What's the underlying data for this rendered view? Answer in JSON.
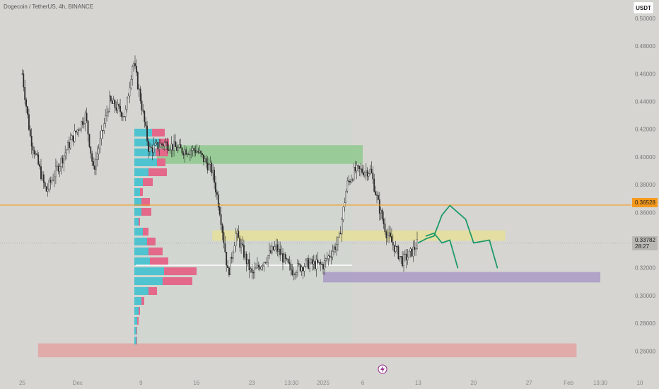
{
  "header": {
    "symbol_line": "Dogecoin / TetherUS, 4h, BINANCE",
    "currency_button": "USDT"
  },
  "price_labels": {
    "level_line": "0.36528",
    "last_price": "0.33782",
    "countdown": "28:27"
  },
  "colors": {
    "background": "#d6d5d1",
    "candle": "#2a2a2a",
    "level_line": "#f59a1c",
    "green_zone": "#8fc98f",
    "yellow_zone": "#e6df9a",
    "purple_zone": "#a99ac6",
    "red_zone": "#e3a3a3",
    "projection": "#1e9a6a",
    "volume_profile_up": "#4fc3cf",
    "volume_profile_down": "#e3688a"
  },
  "chart_data": {
    "type": "candlestick",
    "title": "Dogecoin / TetherUS, 4h, BINANCE",
    "price_unit": "USDT",
    "x_tick_labels": [
      "25",
      "Dec",
      "9",
      "16",
      "23",
      "13:30",
      "2025",
      "6",
      "13",
      "20",
      "27",
      "Feb",
      "13:30",
      "10"
    ],
    "y_tick_labels": [
      "0.50000",
      "0.48000",
      "0.46000",
      "0.44000",
      "0.42000",
      "0.40000",
      "0.38000",
      "0.36000",
      "0.32000",
      "0.30000",
      "0.28000",
      "0.26000"
    ],
    "ylim": [
      0.252,
      0.503
    ],
    "horizontal_level": 0.36528,
    "last_price": 0.33782,
    "price_path": [
      {
        "date": "2024-11-24",
        "price": 0.46
      },
      {
        "date": "2024-11-25",
        "price": 0.415
      },
      {
        "date": "2024-11-27",
        "price": 0.375
      },
      {
        "date": "2024-11-30",
        "price": 0.41
      },
      {
        "date": "2024-12-02",
        "price": 0.43
      },
      {
        "date": "2024-12-03",
        "price": 0.39
      },
      {
        "date": "2024-12-05",
        "price": 0.44
      },
      {
        "date": "2024-12-07",
        "price": 0.43
      },
      {
        "date": "2024-12-08",
        "price": 0.47
      },
      {
        "date": "2024-12-09",
        "price": 0.44
      },
      {
        "date": "2024-12-10",
        "price": 0.405
      },
      {
        "date": "2024-12-12",
        "price": 0.41
      },
      {
        "date": "2024-12-14",
        "price": 0.405
      },
      {
        "date": "2024-12-16",
        "price": 0.405
      },
      {
        "date": "2024-12-18",
        "price": 0.39
      },
      {
        "date": "2024-12-19",
        "price": 0.36
      },
      {
        "date": "2024-12-20",
        "price": 0.315
      },
      {
        "date": "2024-12-21",
        "price": 0.345
      },
      {
        "date": "2024-12-23",
        "price": 0.315
      },
      {
        "date": "2024-12-26",
        "price": 0.335
      },
      {
        "date": "2024-12-28",
        "price": 0.318
      },
      {
        "date": "2024-12-30",
        "price": 0.323
      },
      {
        "date": "2025-01-01",
        "price": 0.322
      },
      {
        "date": "2025-01-03",
        "price": 0.34
      },
      {
        "date": "2025-01-04",
        "price": 0.38
      },
      {
        "date": "2025-01-05",
        "price": 0.39
      },
      {
        "date": "2025-01-07",
        "price": 0.39
      },
      {
        "date": "2025-01-08",
        "price": 0.365
      },
      {
        "date": "2025-01-09",
        "price": 0.345
      },
      {
        "date": "2025-01-10",
        "price": 0.335
      },
      {
        "date": "2025-01-11",
        "price": 0.325
      },
      {
        "date": "2025-01-12",
        "price": 0.33
      },
      {
        "date": "2025-01-13",
        "price": 0.338
      }
    ],
    "zones": [
      {
        "name": "green",
        "date_from": "2024-12-11",
        "date_to": "2025-01-06",
        "price_low": 0.395,
        "price_high": 0.4085
      },
      {
        "name": "yellow",
        "date_from": "2024-12-18",
        "date_to": "2025-01-24",
        "price_low": 0.3395,
        "price_high": 0.347
      },
      {
        "name": "purple",
        "date_from": "2025-01-01",
        "date_to": "2025-02-05",
        "price_low": 0.3095,
        "price_high": 0.317
      },
      {
        "name": "red",
        "date_from": "2024-11-26",
        "date_to": "2025-02-02",
        "price_low": 0.2555,
        "price_high": 0.2655
      }
    ],
    "projections": [
      [
        {
          "date": "2025-01-13",
          "price": 0.338
        },
        {
          "date": "2025-01-14",
          "price": 0.341
        },
        {
          "date": "2025-01-15",
          "price": 0.343
        },
        {
          "date": "2025-01-16",
          "price": 0.358
        },
        {
          "date": "2025-01-17",
          "price": 0.365
        },
        {
          "date": "2025-01-19",
          "price": 0.355
        },
        {
          "date": "2025-01-20",
          "price": 0.338
        },
        {
          "date": "2025-01-22",
          "price": 0.34
        },
        {
          "date": "2025-01-23",
          "price": 0.32
        }
      ],
      [
        {
          "date": "2025-01-14",
          "price": 0.343
        },
        {
          "date": "2025-01-15",
          "price": 0.345
        },
        {
          "date": "2025-01-16",
          "price": 0.338
        },
        {
          "date": "2025-01-17",
          "price": 0.34
        },
        {
          "date": "2025-01-18",
          "price": 0.32
        }
      ]
    ],
    "grid": false
  }
}
